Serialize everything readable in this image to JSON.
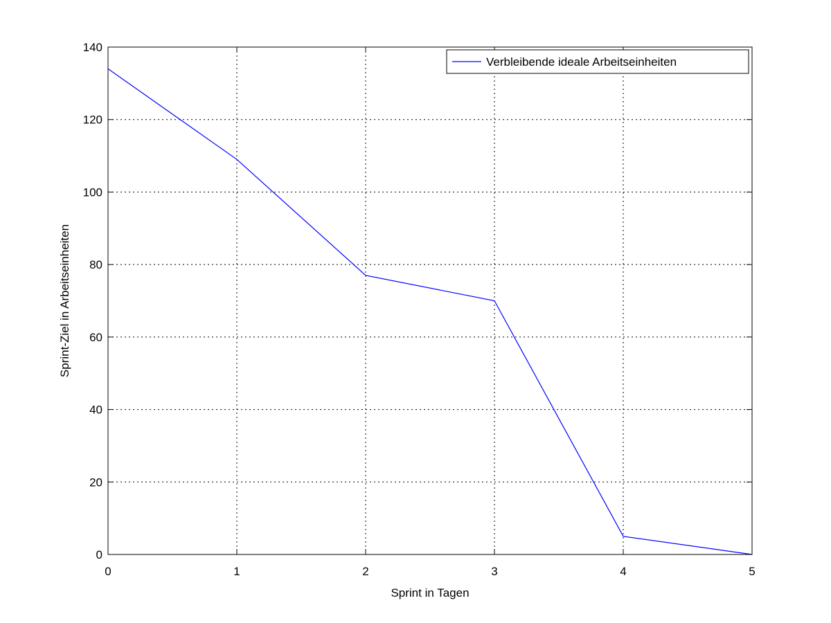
{
  "chart_data": {
    "type": "line",
    "title": "",
    "xlabel": "Sprint in Tagen",
    "ylabel": "Sprint-Ziel in Arbeitseinheiten",
    "xlim": [
      0,
      5
    ],
    "ylim": [
      0,
      140
    ],
    "xticks": [
      "0",
      "1",
      "2",
      "3",
      "4",
      "5"
    ],
    "yticks": [
      "0",
      "20",
      "40",
      "60",
      "80",
      "100",
      "120",
      "140"
    ],
    "grid": true,
    "legend_position": "top-right",
    "series": [
      {
        "name": "Verbleibende ideale Arbeitseinheiten",
        "color": "#0000ff",
        "x": [
          0,
          1,
          2,
          3,
          4,
          5
        ],
        "values": [
          134,
          109,
          77,
          70,
          5,
          0
        ]
      }
    ]
  }
}
